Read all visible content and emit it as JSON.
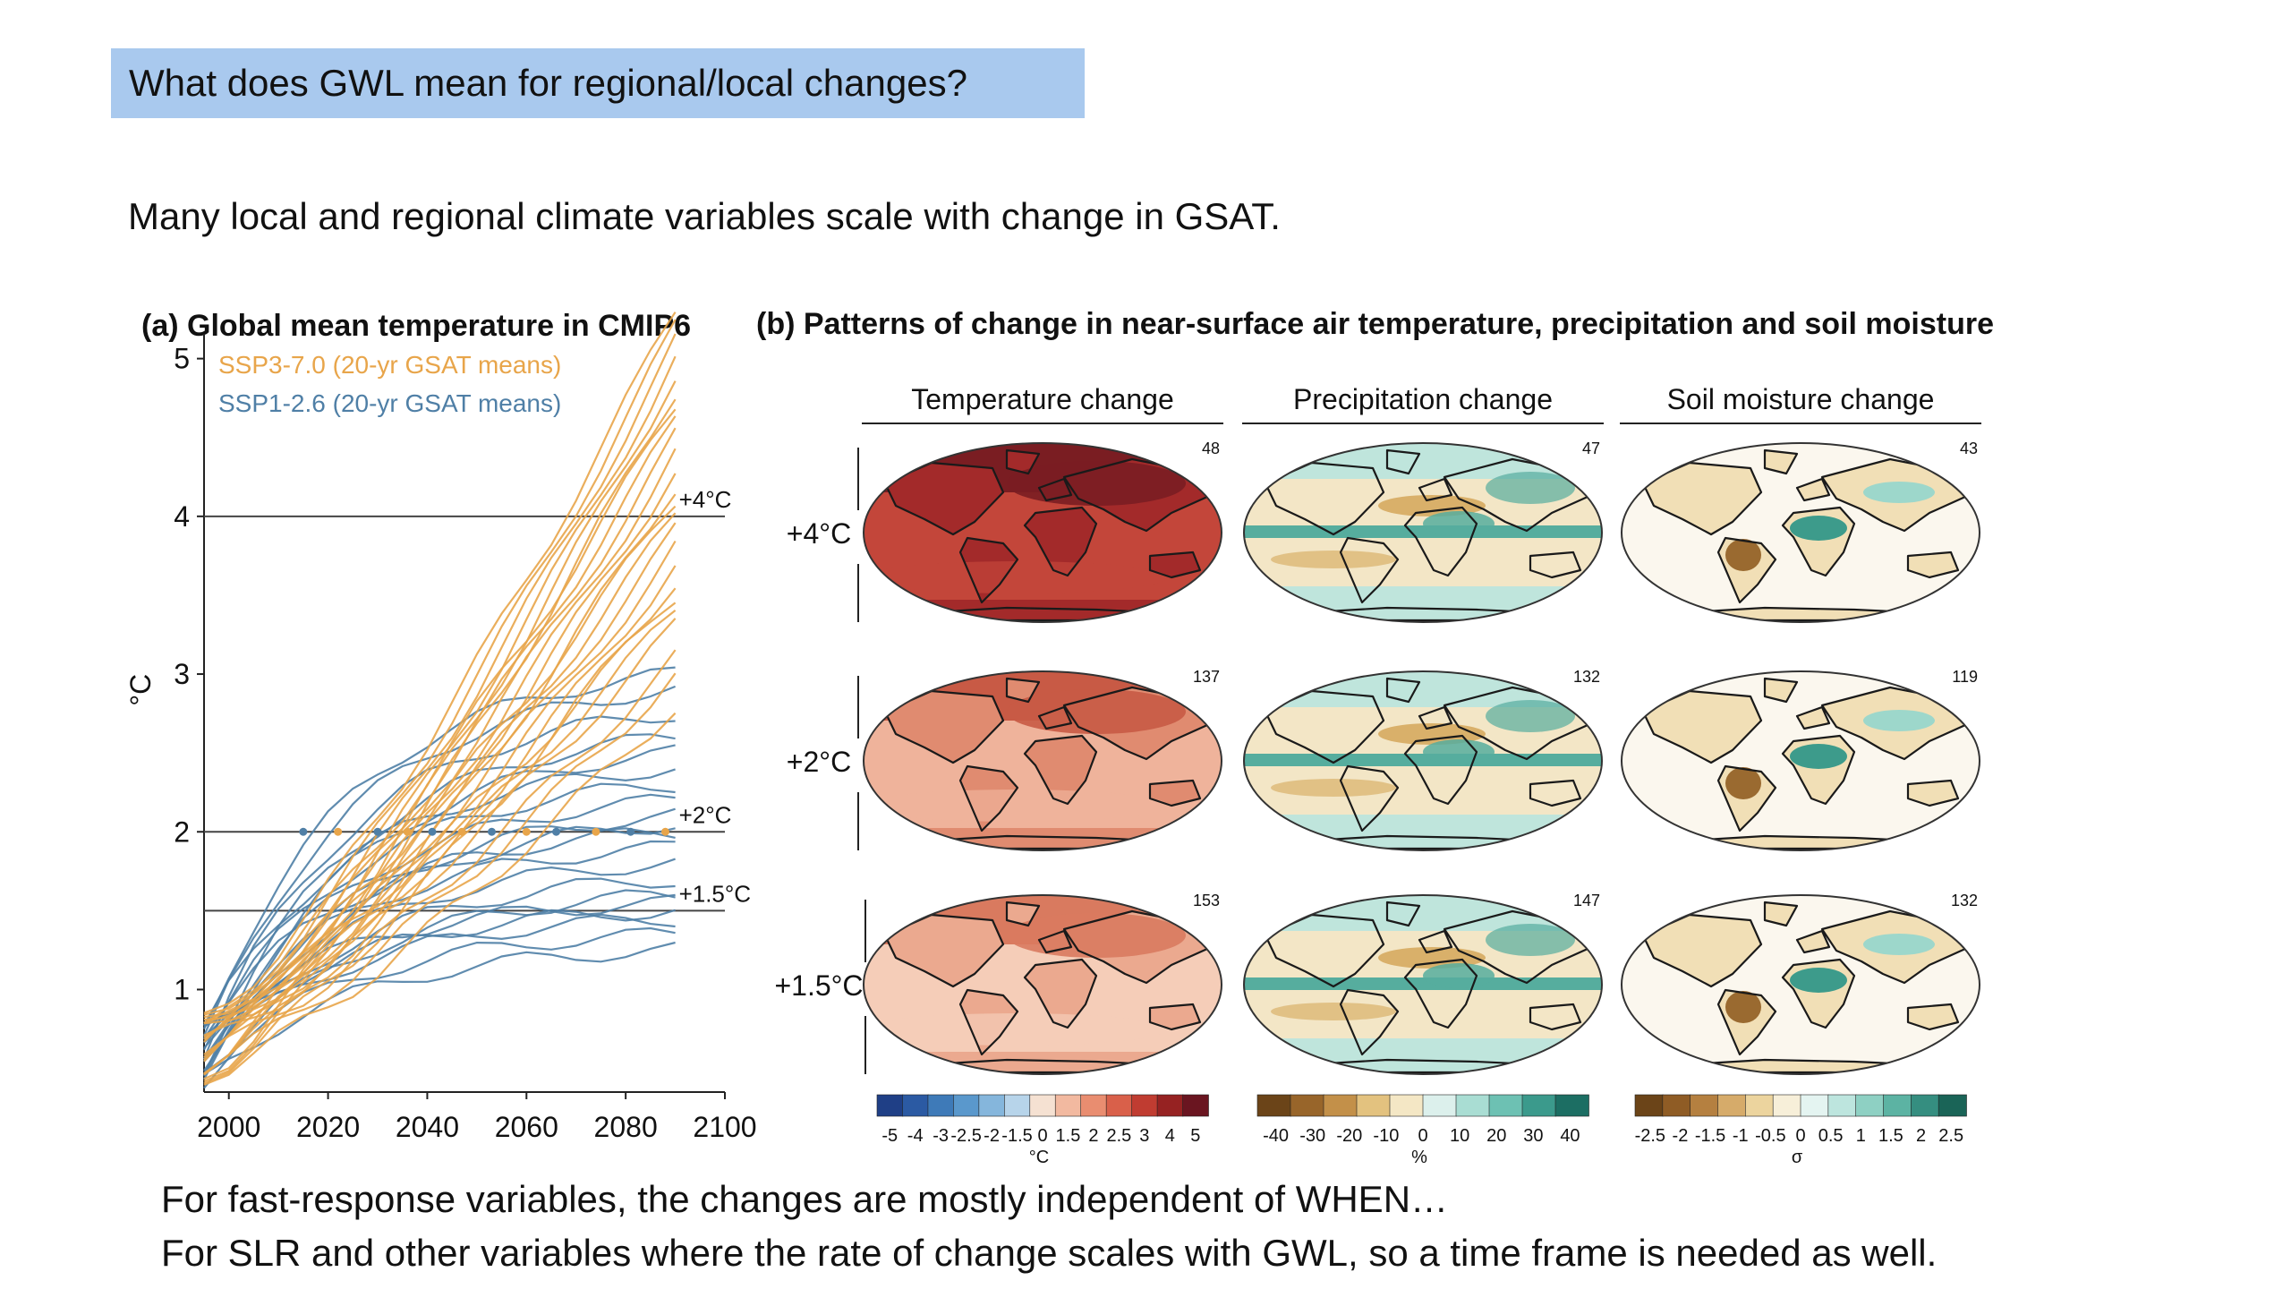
{
  "slide": {
    "heading": "What does GWL mean for regional/local changes?",
    "intro": "Many local and regional climate variables scale with change in GSAT.",
    "bottom_line1": "For fast-response variables, the changes are mostly independent of WHEN…",
    "bottom_line2": "For SLR and other variables where the rate of change scales with GWL, so a time frame is needed as well."
  },
  "panel_a": {
    "title": "(a) Global mean temperature in CMIP6",
    "ylabel": "°C",
    "legend_ssp370": "SSP3-7.0 (20-yr GSAT means)",
    "legend_ssp126": "SSP1-2.6 (20-yr GSAT means)",
    "colors": {
      "ssp370": "#e8a54a",
      "ssp126": "#4f7fa6",
      "ref_line": "#444444"
    },
    "thresholds": [
      {
        "label": "+4°C",
        "value": 4
      },
      {
        "label": "+2°C",
        "value": 2
      },
      {
        "label": "+1.5°C",
        "value": 1.5
      }
    ]
  },
  "chart_data": {
    "type": "line",
    "xlim": [
      1995,
      2100
    ],
    "ylim": [
      0.35,
      5.1
    ],
    "xticks": [
      2000,
      2020,
      2040,
      2060,
      2080,
      2100
    ],
    "yticks": [
      1,
      2,
      3,
      4,
      5
    ],
    "ssp370_end_values": [
      2.8,
      3.0,
      3.1,
      3.3,
      3.4,
      3.5,
      3.6,
      3.7,
      3.8,
      3.9,
      4.0,
      4.1,
      4.2,
      4.3,
      4.4,
      4.5,
      4.6,
      4.7,
      4.8,
      4.9,
      5.0,
      5.1,
      5.2,
      5.3
    ],
    "ssp126_end_values": [
      1.25,
      1.35,
      1.45,
      1.5,
      1.55,
      1.6,
      1.7,
      1.8,
      1.9,
      2.0,
      2.05,
      2.1,
      2.2,
      2.3,
      2.4,
      2.5,
      2.6,
      2.75,
      2.9,
      3.0
    ]
  },
  "panel_b": {
    "title": "(b) Patterns of change in near-surface air temperature, precipitation and soil moisture",
    "columns": [
      "Temperature change",
      "Precipitation change",
      "Soil moisture change"
    ],
    "rows": [
      "+4°C",
      "+2°C",
      "+1.5°C"
    ],
    "counts": [
      [
        "48",
        "47",
        "43"
      ],
      [
        "137",
        "132",
        "119"
      ],
      [
        "153",
        "147",
        "132"
      ]
    ],
    "colorbars": [
      {
        "ticks": [
          "-5",
          "-4",
          "-3",
          "-2.5",
          "-2",
          "-1.5",
          "0",
          "1.5",
          "2",
          "2.5",
          "3",
          "4",
          "5"
        ],
        "unit": "°C",
        "colors": [
          "#1f3f86",
          "#2b5aa3",
          "#3e7ab8",
          "#5a98cc",
          "#85b6dc",
          "#b7d4ea",
          "#f5e1d2",
          "#f2b9a0",
          "#e98d70",
          "#d9604a",
          "#c03c31",
          "#962222",
          "#6a1520"
        ]
      },
      {
        "ticks": [
          "-40",
          "-30",
          "-20",
          "-10",
          "0",
          "10",
          "20",
          "30",
          "40"
        ],
        "unit": "%",
        "colors": [
          "#6b4418",
          "#98652a",
          "#c39049",
          "#e3c27f",
          "#f4e7c5",
          "#dcf0ec",
          "#a9ddd3",
          "#6dc1b3",
          "#3b9a8c",
          "#1c6e63"
        ]
      },
      {
        "ticks": [
          "-2.5",
          "-2",
          "-1.5",
          "-1",
          "-0.5",
          "0",
          "0.5",
          "1",
          "1.5",
          "2",
          "2.5"
        ],
        "unit": "σ",
        "colors": [
          "#6b4418",
          "#8f5c25",
          "#b58040",
          "#d6ab6a",
          "#ecd49e",
          "#f7efd9",
          "#e4f4f1",
          "#bde5de",
          "#8ed0c3",
          "#5cb3a3",
          "#358e80",
          "#1a6457"
        ]
      }
    ]
  },
  "map_palette": {
    "temp4": [
      "#c3463a",
      "#a32a2a",
      "#7a1d22"
    ],
    "temp2": [
      "#efb39b",
      "#e08b70",
      "#c85a45"
    ],
    "temp15": [
      "#f5cdb8",
      "#eba98f",
      "#d97a5f"
    ],
    "precip": [
      "#f3e6c6",
      "#bfe5dc",
      "#56ad9e",
      "#d9b06a"
    ],
    "soil": [
      "#fbf7ee",
      "#f1dfb6",
      "#9dd7cb",
      "#3d9b8b",
      "#9a6a30"
    ]
  }
}
